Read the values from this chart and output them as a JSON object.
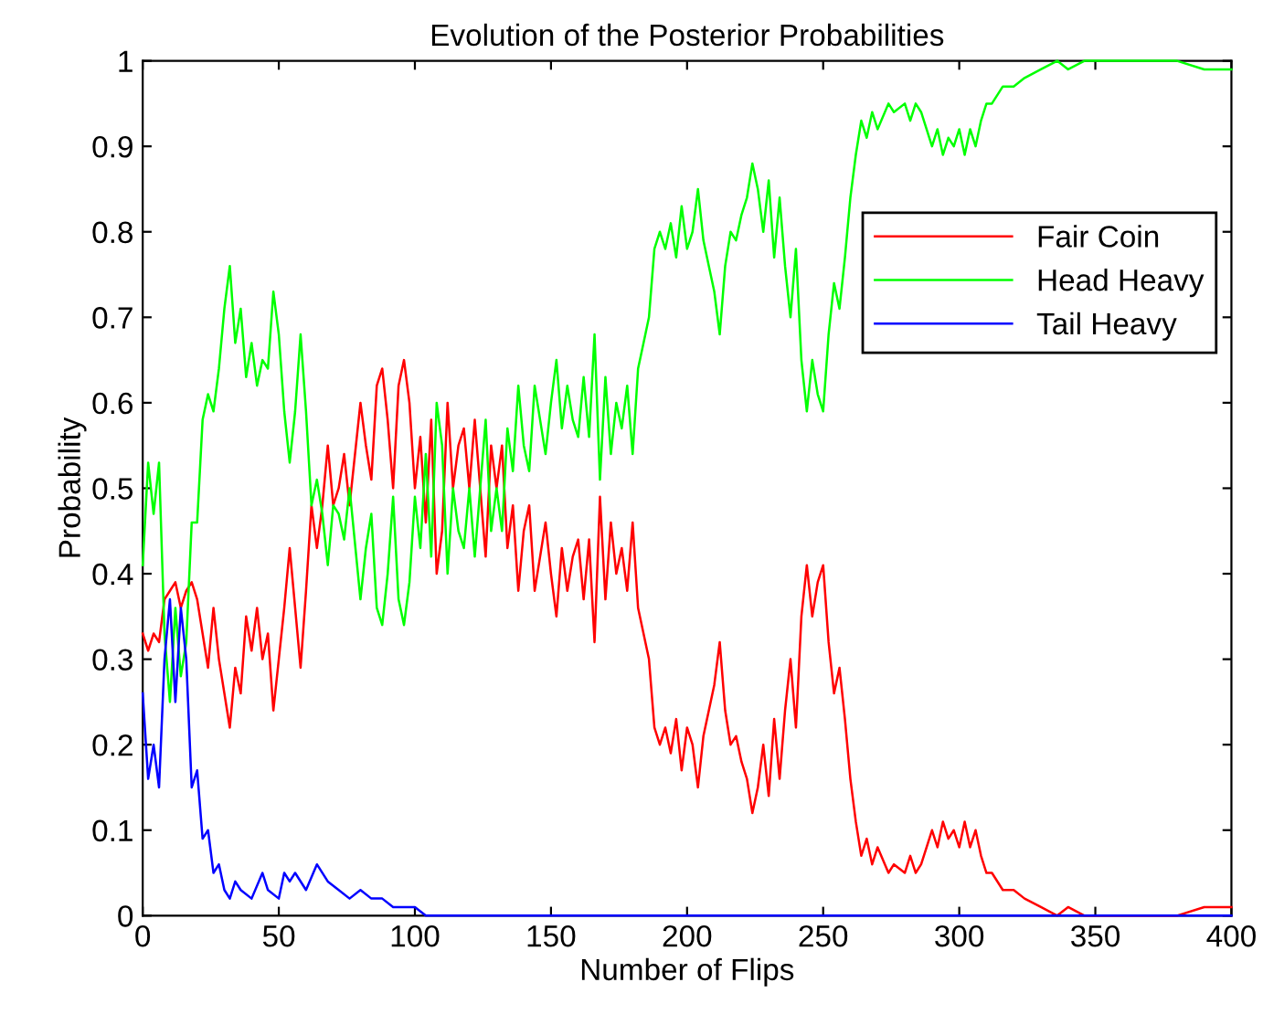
{
  "chart_data": {
    "type": "line",
    "title": "Evolution of the Posterior Probabilities",
    "xlabel": "Number of Flips",
    "ylabel": "Probability",
    "xlim": [
      0,
      400
    ],
    "xticks": [
      0,
      50,
      100,
      150,
      200,
      250,
      300,
      350,
      400
    ],
    "ylim": [
      0,
      1
    ],
    "yticks": [
      0,
      0.1,
      0.2,
      0.3,
      0.4,
      0.5,
      0.6,
      0.7,
      0.8,
      0.9,
      1
    ],
    "grid": false,
    "legend": "top right",
    "marker": "none",
    "line_style": "solid",
    "series": [
      {
        "name": "Fair Coin",
        "color": "#ff0000",
        "x": [
          0,
          2,
          4,
          6,
          8,
          10,
          12,
          14,
          16,
          18,
          20,
          22,
          24,
          26,
          28,
          30,
          32,
          34,
          36,
          38,
          40,
          42,
          44,
          46,
          48,
          50,
          52,
          54,
          56,
          58,
          60,
          62,
          64,
          66,
          68,
          70,
          72,
          74,
          76,
          80,
          82,
          84,
          86,
          88,
          90,
          92,
          94,
          96,
          98,
          100,
          102,
          104,
          106,
          108,
          110,
          112,
          114,
          116,
          118,
          120,
          122,
          124,
          126,
          128,
          130,
          132,
          134,
          136,
          138,
          140,
          142,
          144,
          146,
          148,
          150,
          152,
          154,
          156,
          158,
          160,
          162,
          164,
          166,
          168,
          170,
          172,
          174,
          176,
          178,
          180,
          182,
          184,
          186,
          188,
          190,
          192,
          194,
          196,
          198,
          200,
          202,
          204,
          206,
          208,
          210,
          212,
          214,
          216,
          218,
          220,
          222,
          224,
          226,
          228,
          230,
          232,
          234,
          236,
          238,
          240,
          242,
          244,
          246,
          248,
          250,
          252,
          254,
          256,
          258,
          260,
          262,
          264,
          266,
          268,
          270,
          274,
          276,
          280,
          282,
          284,
          286,
          290,
          292,
          294,
          296,
          298,
          300,
          302,
          304,
          306,
          308,
          310,
          312,
          316,
          320,
          324,
          330,
          336,
          340,
          346,
          360,
          380,
          390,
          396,
          400
        ],
        "values": [
          0.33,
          0.31,
          0.33,
          0.32,
          0.37,
          0.38,
          0.39,
          0.36,
          0.38,
          0.39,
          0.37,
          0.33,
          0.29,
          0.36,
          0.3,
          0.26,
          0.22,
          0.29,
          0.26,
          0.35,
          0.31,
          0.36,
          0.3,
          0.33,
          0.24,
          0.3,
          0.36,
          0.43,
          0.36,
          0.29,
          0.38,
          0.48,
          0.43,
          0.48,
          0.55,
          0.48,
          0.5,
          0.54,
          0.48,
          0.6,
          0.55,
          0.51,
          0.62,
          0.64,
          0.58,
          0.5,
          0.62,
          0.65,
          0.6,
          0.5,
          0.56,
          0.46,
          0.58,
          0.4,
          0.45,
          0.6,
          0.5,
          0.55,
          0.57,
          0.5,
          0.58,
          0.5,
          0.42,
          0.55,
          0.5,
          0.55,
          0.43,
          0.48,
          0.38,
          0.45,
          0.48,
          0.38,
          0.42,
          0.46,
          0.4,
          0.35,
          0.43,
          0.38,
          0.42,
          0.44,
          0.37,
          0.44,
          0.32,
          0.49,
          0.37,
          0.46,
          0.4,
          0.43,
          0.38,
          0.46,
          0.36,
          0.33,
          0.3,
          0.22,
          0.2,
          0.22,
          0.19,
          0.23,
          0.17,
          0.22,
          0.2,
          0.15,
          0.21,
          0.24,
          0.27,
          0.32,
          0.24,
          0.2,
          0.21,
          0.18,
          0.16,
          0.12,
          0.15,
          0.2,
          0.14,
          0.23,
          0.16,
          0.24,
          0.3,
          0.22,
          0.35,
          0.41,
          0.35,
          0.39,
          0.41,
          0.32,
          0.26,
          0.29,
          0.23,
          0.16,
          0.11,
          0.07,
          0.09,
          0.06,
          0.08,
          0.05,
          0.06,
          0.05,
          0.07,
          0.05,
          0.06,
          0.1,
          0.08,
          0.11,
          0.09,
          0.1,
          0.08,
          0.11,
          0.08,
          0.1,
          0.07,
          0.05,
          0.05,
          0.03,
          0.03,
          0.02,
          0.01,
          0.0,
          0.01,
          0.0,
          0.0,
          0.0,
          0.01,
          0.01,
          0.01
        ]
      },
      {
        "name": "Head Heavy",
        "color": "#00ff00",
        "x": [
          0,
          2,
          4,
          6,
          8,
          10,
          12,
          14,
          16,
          18,
          20,
          22,
          24,
          26,
          28,
          30,
          32,
          34,
          36,
          38,
          40,
          42,
          44,
          46,
          48,
          50,
          52,
          54,
          56,
          58,
          60,
          62,
          64,
          66,
          68,
          70,
          72,
          74,
          76,
          80,
          82,
          84,
          86,
          88,
          90,
          92,
          94,
          96,
          98,
          100,
          102,
          104,
          106,
          108,
          110,
          112,
          114,
          116,
          118,
          120,
          122,
          124,
          126,
          128,
          130,
          132,
          134,
          136,
          138,
          140,
          142,
          144,
          146,
          148,
          150,
          152,
          154,
          156,
          158,
          160,
          162,
          164,
          166,
          168,
          170,
          172,
          174,
          176,
          178,
          180,
          182,
          184,
          186,
          188,
          190,
          192,
          194,
          196,
          198,
          200,
          202,
          204,
          206,
          208,
          210,
          212,
          214,
          216,
          218,
          220,
          222,
          224,
          226,
          228,
          230,
          232,
          234,
          236,
          238,
          240,
          242,
          244,
          246,
          248,
          250,
          252,
          254,
          256,
          258,
          260,
          262,
          264,
          266,
          268,
          270,
          274,
          276,
          280,
          282,
          284,
          286,
          290,
          292,
          294,
          296,
          298,
          300,
          302,
          304,
          306,
          308,
          310,
          312,
          316,
          320,
          324,
          330,
          336,
          340,
          346,
          360,
          380,
          390,
          396,
          400
        ],
        "values": [
          0.41,
          0.53,
          0.47,
          0.53,
          0.33,
          0.25,
          0.36,
          0.28,
          0.32,
          0.46,
          0.46,
          0.58,
          0.61,
          0.59,
          0.64,
          0.71,
          0.76,
          0.67,
          0.71,
          0.63,
          0.67,
          0.62,
          0.65,
          0.64,
          0.73,
          0.68,
          0.59,
          0.53,
          0.59,
          0.68,
          0.59,
          0.48,
          0.51,
          0.47,
          0.41,
          0.48,
          0.47,
          0.44,
          0.5,
          0.37,
          0.43,
          0.47,
          0.36,
          0.34,
          0.4,
          0.49,
          0.37,
          0.34,
          0.39,
          0.49,
          0.43,
          0.54,
          0.42,
          0.6,
          0.55,
          0.4,
          0.5,
          0.45,
          0.43,
          0.5,
          0.42,
          0.5,
          0.58,
          0.45,
          0.5,
          0.45,
          0.57,
          0.52,
          0.62,
          0.55,
          0.52,
          0.62,
          0.58,
          0.54,
          0.6,
          0.65,
          0.57,
          0.62,
          0.58,
          0.56,
          0.63,
          0.56,
          0.68,
          0.51,
          0.63,
          0.54,
          0.6,
          0.57,
          0.62,
          0.54,
          0.64,
          0.67,
          0.7,
          0.78,
          0.8,
          0.78,
          0.81,
          0.77,
          0.83,
          0.78,
          0.8,
          0.85,
          0.79,
          0.76,
          0.73,
          0.68,
          0.76,
          0.8,
          0.79,
          0.82,
          0.84,
          0.88,
          0.85,
          0.8,
          0.86,
          0.77,
          0.84,
          0.76,
          0.7,
          0.78,
          0.65,
          0.59,
          0.65,
          0.61,
          0.59,
          0.68,
          0.74,
          0.71,
          0.77,
          0.84,
          0.89,
          0.93,
          0.91,
          0.94,
          0.92,
          0.95,
          0.94,
          0.95,
          0.93,
          0.95,
          0.94,
          0.9,
          0.92,
          0.89,
          0.91,
          0.9,
          0.92,
          0.89,
          0.92,
          0.9,
          0.93,
          0.95,
          0.95,
          0.97,
          0.97,
          0.98,
          0.99,
          1.0,
          0.99,
          1.0,
          1.0,
          1.0,
          0.99,
          0.99,
          0.99
        ]
      },
      {
        "name": "Tail Heavy",
        "color": "#0000ff",
        "x": [
          0,
          2,
          4,
          6,
          8,
          10,
          12,
          14,
          16,
          18,
          20,
          22,
          24,
          26,
          28,
          30,
          32,
          34,
          36,
          40,
          44,
          46,
          50,
          52,
          54,
          56,
          60,
          64,
          68,
          72,
          76,
          80,
          84,
          88,
          92,
          96,
          100,
          104,
          120,
          140,
          400
        ],
        "values": [
          0.26,
          0.16,
          0.2,
          0.15,
          0.3,
          0.37,
          0.25,
          0.36,
          0.3,
          0.15,
          0.17,
          0.09,
          0.1,
          0.05,
          0.06,
          0.03,
          0.02,
          0.04,
          0.03,
          0.02,
          0.05,
          0.03,
          0.02,
          0.05,
          0.04,
          0.05,
          0.03,
          0.06,
          0.04,
          0.03,
          0.02,
          0.03,
          0.02,
          0.02,
          0.01,
          0.01,
          0.01,
          0.0,
          0.0,
          0.0,
          0.0
        ]
      }
    ]
  }
}
